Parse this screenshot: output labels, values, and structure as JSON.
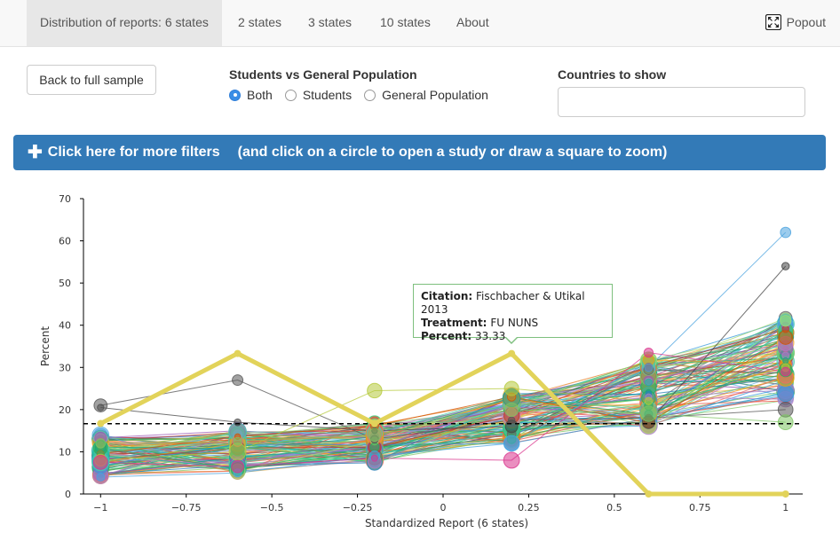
{
  "nav": {
    "tabs": [
      {
        "label": "Distribution of reports: 6 states",
        "active": true
      },
      {
        "label": "2 states"
      },
      {
        "label": "3 states"
      },
      {
        "label": "10 states"
      },
      {
        "label": "About"
      }
    ],
    "popout_label": "Popout",
    "popout_icon": "expand-icon"
  },
  "controls": {
    "back_label": "Back to full sample",
    "population_title": "Students vs General Population",
    "population_options": [
      {
        "label": "Both",
        "checked": true
      },
      {
        "label": "Students",
        "checked": false
      },
      {
        "label": "General Population",
        "checked": false
      }
    ],
    "countries_title": "Countries to show",
    "countries_value": ""
  },
  "filter_bar": {
    "label": "Click here for more filters",
    "hint": "(and click on a circle to open a study or draw a square to zoom)",
    "icon": "plus-icon",
    "color": "#337ab7"
  },
  "tooltip": {
    "citation_key": "Citation:",
    "citation_value": "Fischbacher & Utikal 2013",
    "treatment_key": "Treatment:",
    "treatment_value": "FU NUNS",
    "percent_key": "Percent:",
    "percent_value": "33.33"
  },
  "chart_data": {
    "type": "line",
    "xlabel": "Standardized Report (6 states)",
    "ylabel": "Percent",
    "xlim": [
      -1.05,
      1.05
    ],
    "ylim": [
      0,
      70
    ],
    "x_ticks": [
      "-1",
      "-0.75",
      "-0.5",
      "-0.25",
      "0",
      "0.25",
      "0.5",
      "0.75",
      "1"
    ],
    "y_ticks": [
      "0",
      "10",
      "20",
      "30",
      "40",
      "50",
      "60",
      "70"
    ],
    "x": [
      -1,
      -0.6,
      -0.2,
      0.2,
      0.6,
      1
    ],
    "reference_line": 16.67,
    "highlighted_series": {
      "name": "Fischbacher & Utikal 2013 — FU NUNS",
      "color": "#e2d35a",
      "values": [
        16.7,
        33.3,
        16.7,
        33.3,
        0,
        0
      ]
    },
    "series_count_approx": 120,
    "series_example": [
      {
        "values": [
          20.5,
          17.0,
          15.0,
          16.0,
          17.0,
          54.0
        ],
        "color": "#444444"
      },
      {
        "values": [
          21.0,
          27.0,
          13.0,
          17.5,
          18.0,
          20.0
        ],
        "color": "#555555"
      },
      {
        "values": [
          8.0,
          10.0,
          24.5,
          25.0,
          22.0,
          30.0
        ],
        "color": "#b5c93a"
      },
      {
        "values": [
          4.0,
          5.0,
          9.0,
          12.0,
          30.0,
          62.0
        ],
        "color": "#4aa3df"
      },
      {
        "values": [
          7.5,
          6.5,
          8.5,
          8.0,
          33.5,
          29.0
        ],
        "color": "#d9338c"
      },
      {
        "values": [
          12.0,
          12.5,
          14.0,
          20.0,
          19.0,
          17.0
        ],
        "color": "#7dc463"
      }
    ]
  }
}
